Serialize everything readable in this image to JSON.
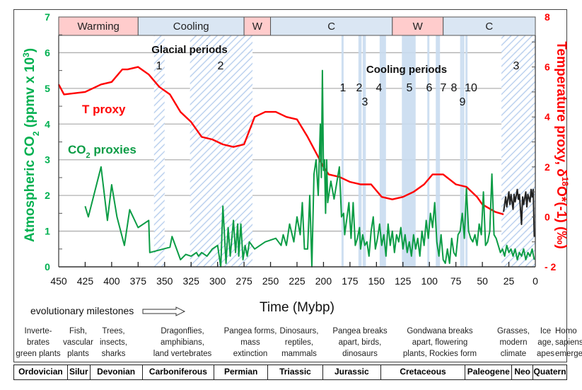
{
  "chart_data": {
    "type": "line",
    "title": "",
    "xlabel": "Time (Mybp)",
    "ylabel_left": "Atmospheric CO2 (ppmv x 10^3)",
    "ylabel_right": "Temperature proxy, δ18O*(-1) (‰)",
    "xlim": [
      450,
      0
    ],
    "ylim_left": [
      0,
      7
    ],
    "ylim_right": [
      -2,
      8
    ],
    "x_ticks": [
      "450",
      "425",
      "400",
      "375",
      "350",
      "325",
      "300",
      "275",
      "250",
      "225",
      "200",
      "175",
      "150",
      "125",
      "100",
      "75",
      "50",
      "25",
      "0"
    ],
    "y_ticks_left": [
      "0",
      "1",
      "2",
      "3",
      "4",
      "5",
      "6",
      "7"
    ],
    "y_ticks_right": [
      "- 2",
      "0",
      "2",
      "4",
      "6",
      "8"
    ],
    "grid": "horizontal",
    "climate_bands": [
      {
        "label": "Warming",
        "from": 450,
        "to": 375,
        "kind": "warm"
      },
      {
        "label": "Cooling",
        "from": 375,
        "to": 275,
        "kind": "cool"
      },
      {
        "label": "W",
        "from": 275,
        "to": 250,
        "kind": "warm"
      },
      {
        "label": "C",
        "from": 250,
        "to": 135,
        "kind": "cool"
      },
      {
        "label": "W",
        "from": 135,
        "to": 87,
        "kind": "warm"
      },
      {
        "label": "C",
        "from": 87,
        "to": 0,
        "kind": "cool"
      }
    ],
    "glacial_periods": [
      {
        "label": "1",
        "from": 360,
        "to": 350
      },
      {
        "label": "2",
        "from": 326,
        "to": 267
      },
      {
        "label": "3",
        "from": 32,
        "to": 0
      }
    ],
    "cooling_periods": [
      {
        "label": "1",
        "from": 183,
        "to": 181
      },
      {
        "label": "2",
        "from": 167,
        "to": 164
      },
      {
        "label": "3",
        "from": 163,
        "to": 160
      },
      {
        "label": "4",
        "from": 147,
        "to": 141
      },
      {
        "label": "5",
        "from": 126,
        "to": 113
      },
      {
        "label": "6",
        "from": 102,
        "to": 100
      },
      {
        "label": "7",
        "from": 94,
        "to": 90
      },
      {
        "label": "8",
        "from": 71,
        "to": 69
      },
      {
        "label": "9",
        "from": 69,
        "to": 67
      },
      {
        "label": "10",
        "from": 66,
        "to": 64
      }
    ],
    "annotations": {
      "glacial_title": "Glacial periods",
      "cooling_title": "Cooling periods",
      "t_proxy_label": "T proxy",
      "co2_label_main": "CO",
      "co2_label_sub": "2",
      "co2_label_rest": " proxies"
    },
    "series": [
      {
        "name": "T proxy",
        "axis": "right",
        "color": "#ff0000",
        "x": [
          450,
          445,
          425,
          410,
          400,
          390,
          385,
          375,
          365,
          355,
          345,
          335,
          325,
          315,
          305,
          295,
          285,
          275,
          265,
          255,
          245,
          235,
          225,
          215,
          205,
          200,
          195,
          185,
          175,
          165,
          155,
          145,
          135,
          125,
          115,
          105,
          97,
          92,
          87,
          75,
          65,
          55,
          50,
          38,
          30
        ],
        "y": [
          5.3,
          4.9,
          5.0,
          5.3,
          5.4,
          5.9,
          5.9,
          6.0,
          5.7,
          5.2,
          4.9,
          4.2,
          3.8,
          3.2,
          3.1,
          2.9,
          2.8,
          2.9,
          4.0,
          4.2,
          4.2,
          4.0,
          3.9,
          3.2,
          2.4,
          2.0,
          1.7,
          1.6,
          1.4,
          1.3,
          1.3,
          0.8,
          0.7,
          0.8,
          1.0,
          1.3,
          1.7,
          1.7,
          1.7,
          1.3,
          1.2,
          0.8,
          0.5,
          0.2,
          0.1
        ]
      },
      {
        "name": "CO2 proxies",
        "axis": "left",
        "color": "#0b9c45",
        "x": [
          425,
          422,
          410,
          404,
          400,
          395,
          388,
          383,
          375,
          365,
          364,
          345,
          343,
          335,
          330,
          325,
          320,
          318,
          315,
          310,
          305,
          300,
          297,
          295,
          292,
          290,
          288,
          285,
          283,
          281,
          280,
          278,
          276,
          274,
          272,
          270,
          265,
          255,
          245,
          240,
          238,
          235,
          232,
          228,
          225,
          222,
          220,
          218,
          215,
          213,
          211,
          209,
          207,
          205,
          203,
          202,
          201,
          200,
          199,
          198,
          197,
          196,
          195,
          193,
          190,
          185,
          183,
          181,
          180,
          176,
          174,
          172,
          170,
          168,
          166,
          165,
          163,
          161,
          159,
          157,
          155,
          153,
          151,
          149,
          147,
          145,
          143,
          141,
          139,
          137,
          135,
          133,
          131,
          129,
          127,
          125,
          123,
          121,
          119,
          117,
          115,
          113,
          111,
          109,
          107,
          105,
          103,
          101,
          99,
          97,
          95,
          93,
          91,
          89,
          87,
          85,
          83,
          81,
          79,
          77,
          75,
          73,
          71,
          69,
          67,
          65,
          63,
          61,
          59,
          57,
          55,
          53,
          51,
          49,
          47,
          45,
          43,
          41,
          39,
          37,
          35,
          33,
          31,
          29,
          27,
          25,
          23,
          21,
          19,
          17,
          15,
          13,
          11,
          9,
          7,
          5,
          3,
          1
        ],
        "values": [
          1.7,
          1.4,
          2.8,
          1.3,
          2.3,
          1.4,
          0.6,
          1.6,
          1.1,
          1.3,
          0.4,
          0.55,
          0.85,
          0.2,
          0.35,
          0.3,
          0.4,
          0.3,
          0.4,
          0.3,
          0.5,
          0.6,
          0.0,
          1.7,
          0.1,
          1.1,
          0.3,
          1.3,
          0.4,
          1.2,
          0.3,
          1.2,
          0.2,
          0.6,
          0.3,
          0.7,
          0.5,
          0.7,
          0.8,
          0.6,
          0.9,
          0.6,
          1.2,
          0.7,
          1.4,
          0.9,
          1.8,
          0.5,
          0.5,
          2.0,
          0.0,
          2.6,
          3.0,
          2.0,
          4.0,
          2.5,
          5.5,
          2.7,
          3.0,
          1.5,
          3.0,
          1.8,
          2.0,
          2.4,
          1.9,
          2.8,
          1.4,
          1.5,
          0.9,
          1.8,
          0.8,
          1.8,
          0.6,
          0.8,
          1.1,
          0.5,
          0.9,
          0.6,
          0.7,
          0.3,
          1.0,
          1.4,
          0.5,
          0.8,
          1.2,
          0.6,
          0.9,
          0.3,
          1.2,
          0.6,
          1.0,
          0.4,
          0.9,
          0.7,
          1.1,
          0.5,
          0.9,
          0.4,
          0.7,
          0.3,
          0.9,
          0.5,
          0.8,
          0.3,
          1.0,
          0.6,
          1.3,
          0.8,
          1.5,
          1.1,
          1.8,
          0.7,
          0.3,
          0.9,
          0.2,
          0.1,
          0.5,
          0.1,
          0.8,
          0.4,
          0.3,
          0.9,
          1.0,
          1.5,
          0.8,
          2.2,
          1.0,
          0.8,
          0.7,
          0.9,
          0.6,
          1.2,
          0.9,
          2.1,
          0.6,
          0.7,
          1.0,
          2.6,
          0.9,
          0.8,
          0.6,
          0.4,
          0.5,
          0.3,
          0.6,
          0.4,
          0.5,
          0.3,
          0.5,
          0.2,
          0.4,
          0.3,
          0.5,
          0.2,
          0.4,
          0.3,
          0.5,
          0.2
        ]
      },
      {
        "name": "Recent T proxy (black)",
        "axis": "right",
        "color": "#222222",
        "x": [
          30,
          28,
          27,
          25,
          24,
          23,
          21,
          20,
          19,
          17,
          16,
          15,
          13,
          12,
          11,
          9,
          8,
          7,
          5,
          4,
          3,
          2,
          1
        ],
        "y": [
          0.2,
          0.8,
          0.4,
          1.0,
          0.5,
          0.9,
          0.3,
          0.9,
          0.6,
          1.1,
          0.7,
          0.9,
          -0.3,
          0.8,
          0.5,
          1.0,
          0.4,
          0.9,
          0.6,
          1.1,
          0.8,
          1.1,
          -0.8
        ]
      }
    ]
  },
  "evolutionary_label": "evolutionary milestones",
  "milestones": [
    {
      "lines": [
        "Inverte-",
        "brates",
        "green plants"
      ]
    },
    {
      "lines": [
        "Fish,",
        "vascular",
        "plants"
      ]
    },
    {
      "lines": [
        "Trees,",
        "insects,",
        "sharks"
      ]
    },
    {
      "lines": [
        "Dragonflies,",
        "amphibians,",
        "land vertebrates"
      ]
    },
    {
      "lines": [
        "Pangea forms,",
        "mass",
        "extinction"
      ]
    },
    {
      "lines": [
        "Dinosaurs,",
        "reptiles,",
        "mammals"
      ]
    },
    {
      "lines": [
        "Pangea breaks",
        "apart, birds,",
        "dinosaurs"
      ]
    },
    {
      "lines": [
        "Gondwana  breaks",
        "apart, flowering",
        "plants, Rockies form"
      ]
    },
    {
      "lines": [
        "Grasses,",
        "modern",
        "climate"
      ]
    },
    {
      "lines": [
        "Ice",
        "age,",
        "apes"
      ]
    },
    {
      "lines": [
        "Homo",
        "sapiens",
        "emerge"
      ]
    }
  ],
  "geologic_periods": [
    {
      "label": "Ordovician"
    },
    {
      "label": "Silur"
    },
    {
      "label": "Devonian"
    },
    {
      "label": "Carboniferous"
    },
    {
      "label": "Permian"
    },
    {
      "label": "Triassic"
    },
    {
      "label": "Jurassic"
    },
    {
      "label": "Cretaceous"
    },
    {
      "label": "Paleogene"
    },
    {
      "label": "Neo"
    },
    {
      "label": "Quatern"
    }
  ],
  "colors": {
    "warm": "#ffcccc",
    "cool": "#dae6f3",
    "band_hatch": "#9fbfe6",
    "co2": "#0b9c45",
    "temp": "#ff0000",
    "left_axis": "#00b050",
    "right_axis": "#ff0000"
  }
}
